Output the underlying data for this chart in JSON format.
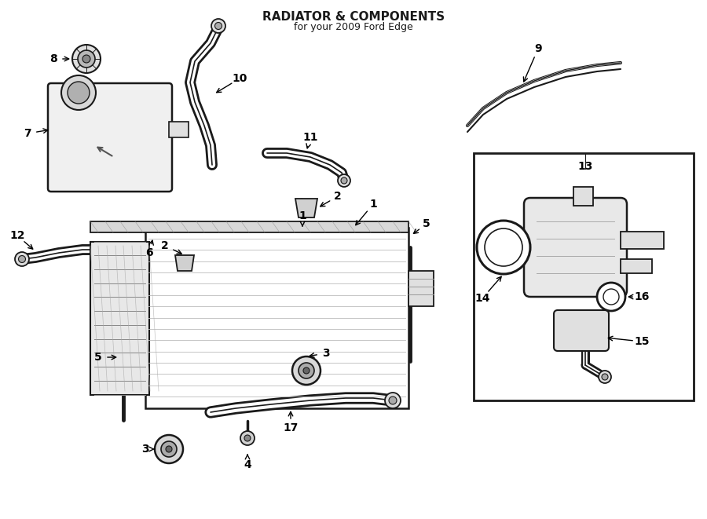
{
  "title": "RADIATOR & COMPONENTS",
  "subtitle": "for your 2009 Ford Edge",
  "bg_color": "#ffffff",
  "line_color": "#1a1a1a",
  "fig_width": 9.0,
  "fig_height": 6.61,
  "dpi": 100,
  "label_fontsize": 10
}
